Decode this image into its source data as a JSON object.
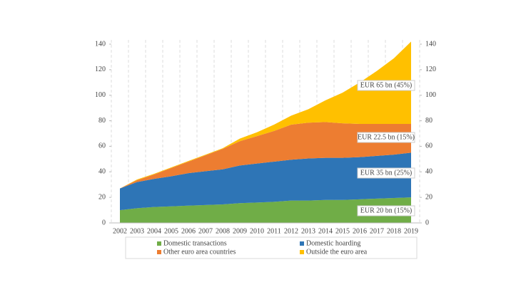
{
  "chart_data": {
    "type": "stacked_area",
    "categories": [
      "2002",
      "2003",
      "2004",
      "2005",
      "2006",
      "2007",
      "2008",
      "2009",
      "2010",
      "2011",
      "2012",
      "2013",
      "2014",
      "2015",
      "2016",
      "2017",
      "2018",
      "2019"
    ],
    "series": [
      {
        "name": "Domestic transactions",
        "color": "#70ad47",
        "values": [
          10,
          11.5,
          12.5,
          13,
          13.5,
          14,
          14.5,
          15.5,
          16,
          16.5,
          17.5,
          17.5,
          18,
          18,
          18.5,
          19,
          19.5,
          20
        ]
      },
      {
        "name": "Domestic hoarding",
        "color": "#2e75b6",
        "values": [
          17,
          20.5,
          22,
          23.5,
          25.5,
          26.5,
          27.5,
          29.5,
          30.5,
          31.5,
          32,
          33,
          33,
          33,
          33,
          33.5,
          34,
          35
        ]
      },
      {
        "name": "Other euro area countries",
        "color": "#ed7d31",
        "values": [
          0,
          1.5,
          3.5,
          6.5,
          9,
          12.5,
          16,
          19,
          21.5,
          24,
          27.5,
          28,
          28,
          27,
          26,
          25,
          24,
          22.5
        ]
      },
      {
        "name": "Outside the euro area",
        "color": "#ffc000",
        "values": [
          0,
          0.5,
          0.5,
          0.5,
          0.5,
          0.5,
          0.5,
          2,
          3,
          5,
          7,
          10.5,
          17,
          24,
          32.5,
          41.5,
          51.5,
          64.5
        ]
      }
    ],
    "annotations": [
      "EUR 20 bn (15%)",
      "EUR 35 bn (25%)",
      "EUR 22.5 bn (15%)",
      "EUR 65 bn (45%)"
    ],
    "ylim": [
      0,
      140
    ],
    "yticks": [
      0,
      20,
      40,
      60,
      80,
      100,
      120,
      140
    ],
    "y2lim": [
      0,
      140
    ],
    "y2ticks": [
      0,
      20,
      40,
      60,
      80,
      100,
      120,
      140
    ],
    "grid": "x"
  }
}
